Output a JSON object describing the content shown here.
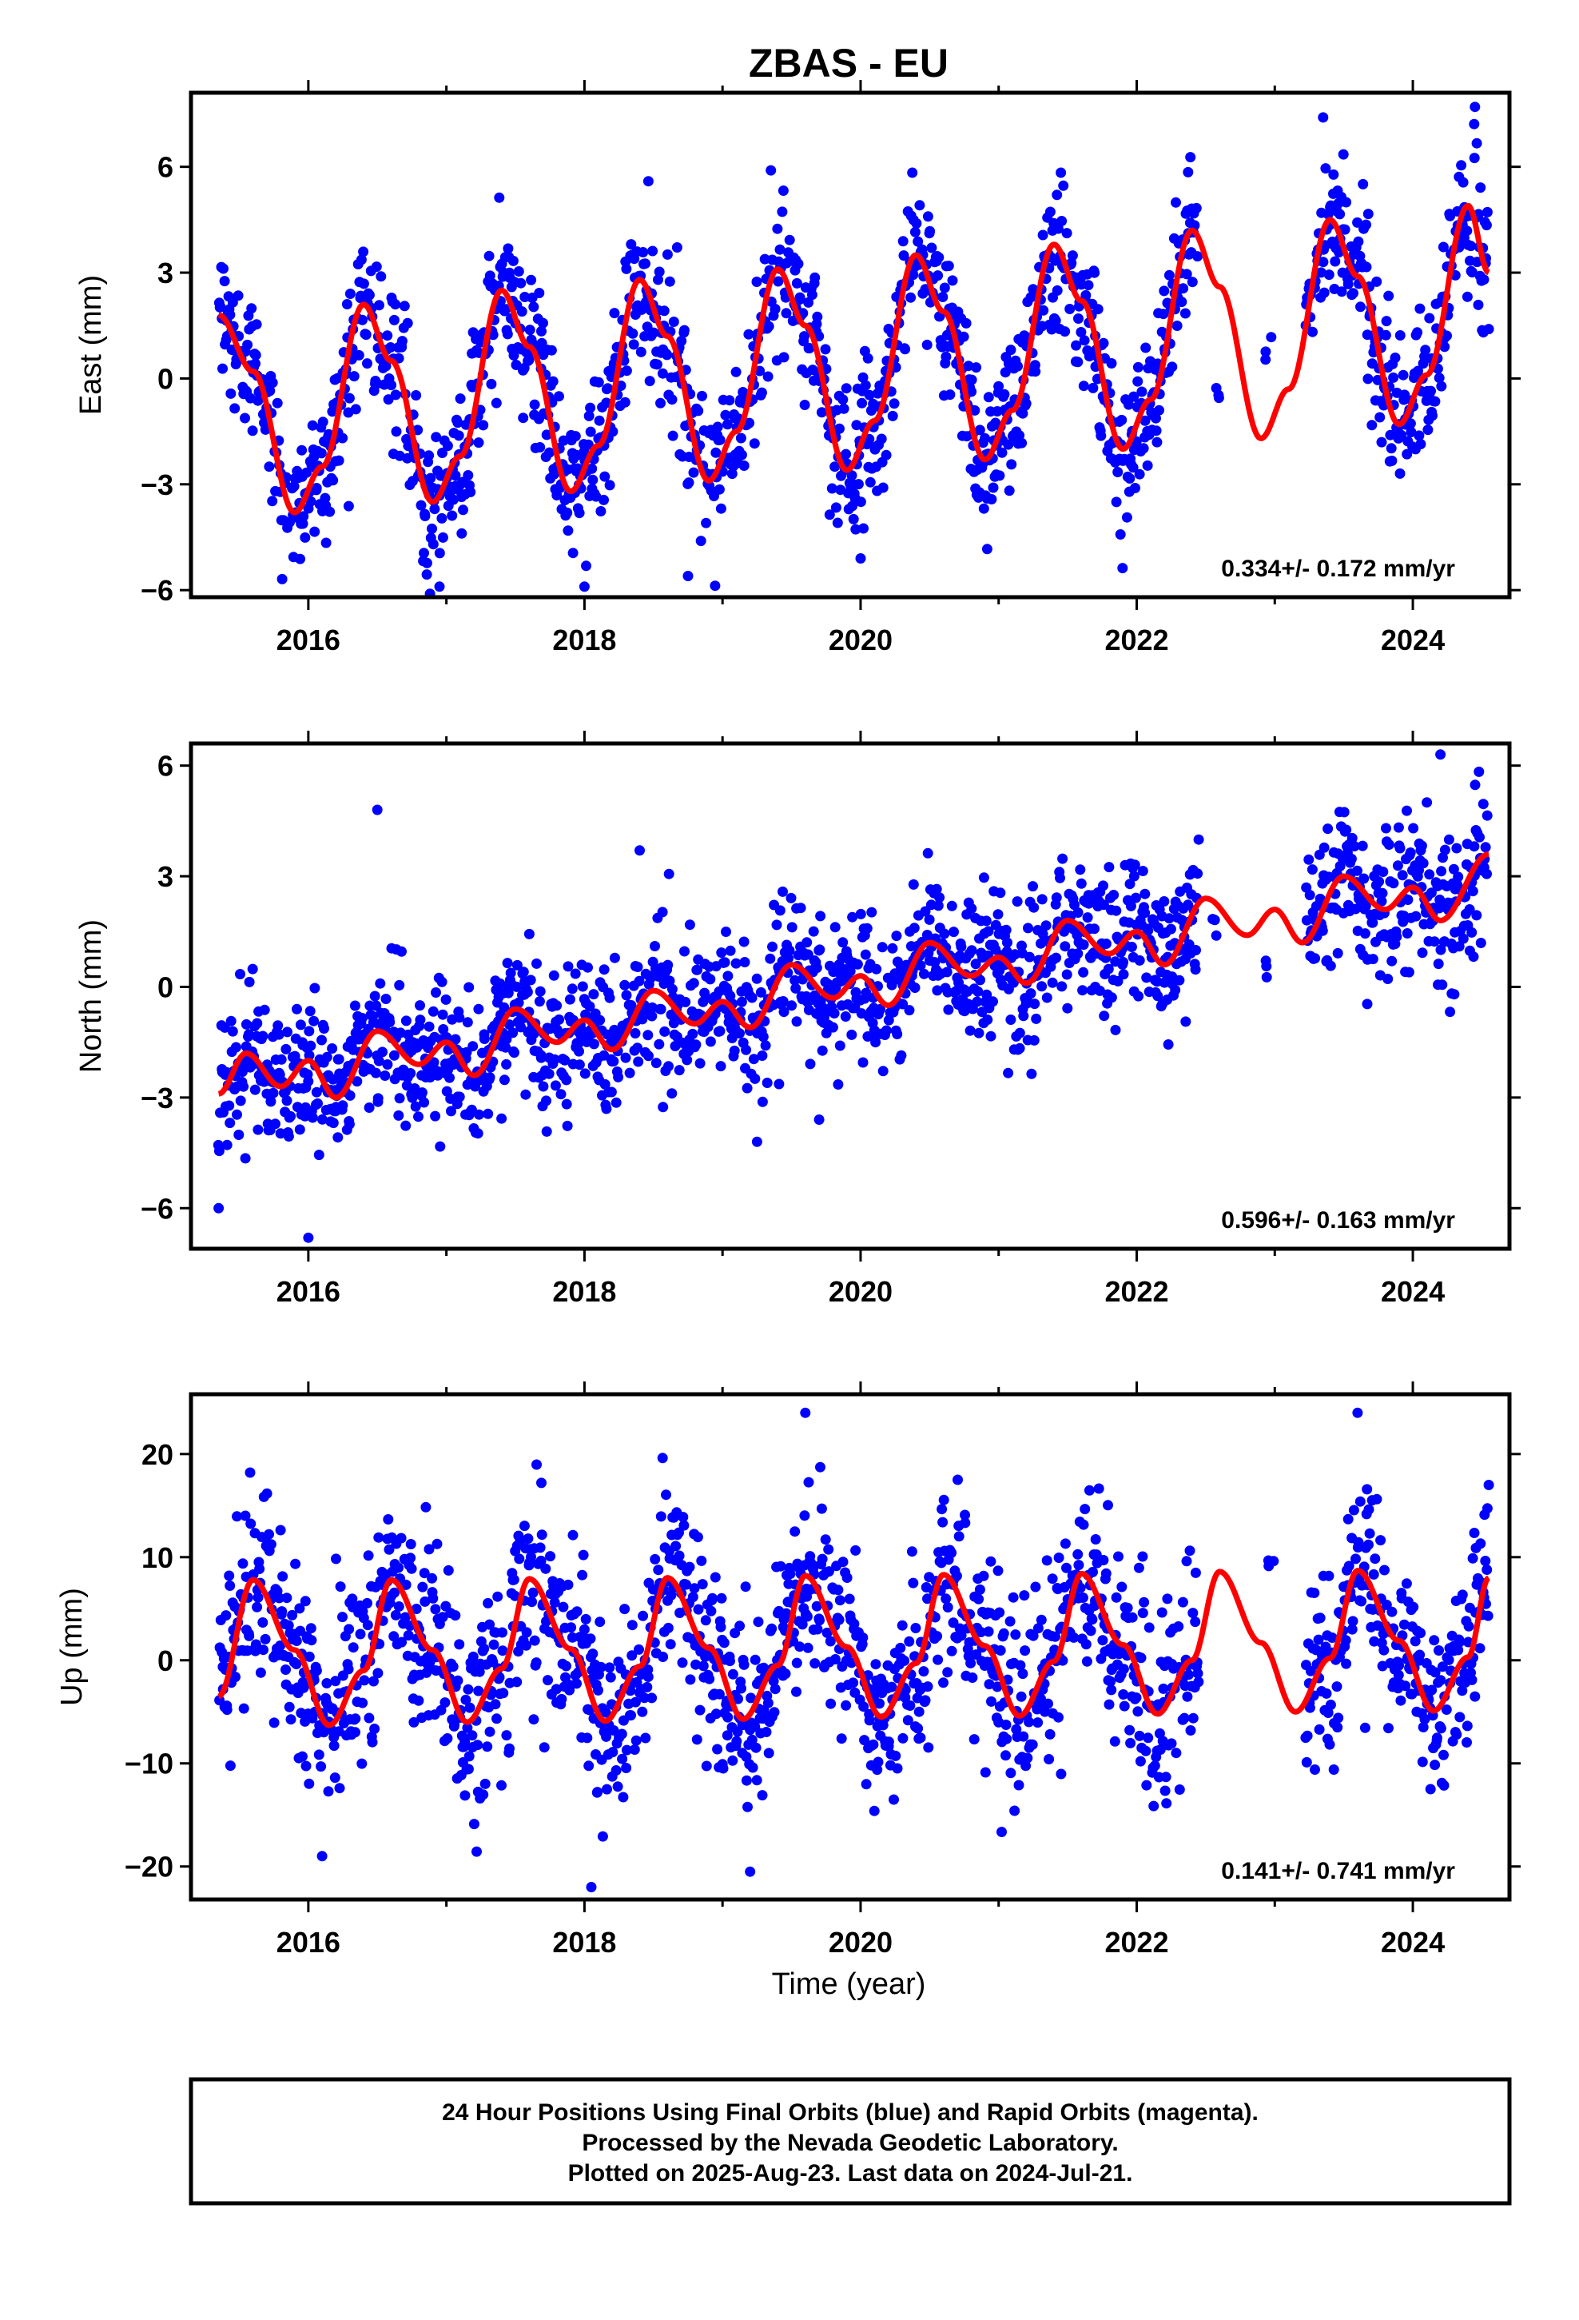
{
  "title": "ZBAS - EU",
  "xlabel": "Time (year)",
  "footer": {
    "lines": [
      "24 Hour Positions Using Final Orbits (blue) and Rapid Orbits (magenta).",
      "Processed by the Nevada Geodetic Laboratory.",
      "Plotted on 2025-Aug-23. Last data on 2024-Jul-21."
    ]
  },
  "colors": {
    "points": "#0000ff",
    "fit": "#ff0000",
    "frame": "#000000"
  },
  "chart_data": [
    {
      "type": "scatter",
      "name": "east",
      "ylabel": "East (mm)",
      "rate_text": "0.334+/- 0.172 mm/yr",
      "xlim": [
        2015.15,
        2024.7
      ],
      "ylim": [
        -6.2,
        8.1
      ],
      "xticks": [
        2016,
        2018,
        2020,
        2022,
        2024
      ],
      "yticks": [
        -6,
        -3,
        0,
        3,
        6
      ],
      "fit": {
        "annual_amp": 3.0,
        "annual_phase": 0.04,
        "semi_amp": 0.4,
        "semi_phase": 0.2,
        "trend": 0.334,
        "offset": -0.9
      },
      "fit_x": [
        2015.35,
        2015.6,
        2015.9,
        2016.1,
        2016.4,
        2016.6,
        2016.9,
        2017.1,
        2017.4,
        2017.6,
        2017.9,
        2018.1,
        2018.4,
        2018.6,
        2018.9,
        2019.1,
        2019.4,
        2019.6,
        2019.9,
        2020.1,
        2020.4,
        2020.6,
        2020.9,
        2021.1,
        2021.4,
        2021.6,
        2021.9,
        2022.1,
        2022.4,
        2022.6,
        2022.9,
        2023.1,
        2023.4,
        2023.6,
        2023.9,
        2024.1,
        2024.4,
        2024.55
      ],
      "fit_y": [
        1.8,
        0.2,
        -3.8,
        -2.5,
        2.1,
        0.5,
        -3.5,
        -2.2,
        2.5,
        0.9,
        -3.2,
        -1.9,
        2.8,
        1.2,
        -2.9,
        -1.5,
        3.1,
        1.5,
        -2.6,
        -1.2,
        3.5,
        1.9,
        -2.3,
        -0.9,
        3.8,
        2.2,
        -2.0,
        -0.6,
        4.2,
        2.6,
        -1.7,
        -0.3,
        4.5,
        2.9,
        -1.3,
        0.1,
        4.9,
        3.0
      ],
      "cloud": {
        "x_start": 2015.35,
        "x_end": 2024.55,
        "gaps": [
          [
            2022.45,
            2023.22
          ]
        ],
        "sparse": [
          [
            2022.55,
            2022.6,
            -0.2
          ],
          [
            2022.93,
            2022.98,
            0.8
          ]
        ],
        "noise": 1.05,
        "n": 1900
      },
      "outliers": [
        [
          2019.35,
          5.9
        ],
        [
          2018.75,
          -5.6
        ],
        [
          2018.0,
          -5.9
        ],
        [
          2016.95,
          -5.9
        ],
        [
          2020.0,
          -5.1
        ],
        [
          2024.45,
          7.7
        ],
        [
          2023.35,
          7.4
        ],
        [
          2024.55,
          1.4
        ]
      ]
    },
    {
      "type": "scatter",
      "name": "north",
      "ylabel": "North (mm)",
      "rate_text": "0.596+/- 0.163 mm/yr",
      "xlim": [
        2015.15,
        2024.7
      ],
      "ylim": [
        -7.1,
        6.6
      ],
      "xticks": [
        2016,
        2018,
        2020,
        2022,
        2024
      ],
      "yticks": [
        -6,
        -3,
        0,
        3,
        6
      ],
      "fit": {
        "annual_amp": 0.55,
        "annual_phase": 0.55,
        "semi_amp": 0.35,
        "semi_phase": 0.1,
        "trend": 0.596,
        "offset": -2.4
      },
      "fit_x": [
        2015.35,
        2015.55,
        2015.8,
        2016.0,
        2016.2,
        2016.5,
        2016.8,
        2017.0,
        2017.2,
        2017.5,
        2017.8,
        2018.0,
        2018.2,
        2018.5,
        2018.8,
        2019.0,
        2019.2,
        2019.5,
        2019.8,
        2020.0,
        2020.2,
        2020.5,
        2020.8,
        2021.0,
        2021.2,
        2021.5,
        2021.8,
        2022.0,
        2022.2,
        2022.5,
        2022.8,
        2023.0,
        2023.2,
        2023.5,
        2023.8,
        2024.0,
        2024.2,
        2024.55
      ],
      "fit_y": [
        -2.9,
        -1.8,
        -2.7,
        -2.0,
        -3.0,
        -1.2,
        -2.1,
        -1.5,
        -2.4,
        -0.6,
        -1.5,
        -0.9,
        -1.7,
        -0.1,
        -1.0,
        -0.4,
        -1.1,
        0.6,
        -0.3,
        0.3,
        -0.5,
        1.2,
        0.3,
        0.8,
        0.1,
        1.8,
        0.9,
        1.5,
        0.6,
        2.4,
        1.4,
        2.1,
        1.2,
        3.0,
        2.1,
        2.7,
        1.8,
        3.6
      ],
      "cloud": {
        "x_start": 2015.35,
        "x_end": 2024.55,
        "gaps": [
          [
            2022.45,
            2023.22
          ]
        ],
        "sparse": [
          [
            2022.55,
            2022.6,
            1.5
          ],
          [
            2022.9,
            2022.95,
            0.4
          ]
        ],
        "noise": 0.95,
        "n": 1900
      },
      "outliers": [
        [
          2016.5,
          4.8
        ],
        [
          2016.0,
          -6.8
        ],
        [
          2015.35,
          -6.0
        ],
        [
          2018.4,
          3.7
        ],
        [
          2019.7,
          -3.6
        ],
        [
          2024.2,
          6.3
        ],
        [
          2024.3,
          -0.2
        ],
        [
          2019.25,
          -4.2
        ]
      ]
    },
    {
      "type": "scatter",
      "name": "up",
      "ylabel": "Up (mm)",
      "rate_text": "0.141+/- 0.741 mm/yr",
      "xlim": [
        2015.15,
        2024.7
      ],
      "ylim": [
        -23.2,
        25.8
      ],
      "xticks": [
        2016,
        2018,
        2020,
        2022,
        2024
      ],
      "yticks": [
        -20,
        -10,
        0,
        10,
        20
      ],
      "fit": {
        "annual_amp": 7.0,
        "annual_phase": 0.34,
        "semi_amp": 1.0,
        "semi_phase": 0.0,
        "trend": 0.141,
        "offset": 1.0
      },
      "fit_x": [
        2015.35,
        2015.6,
        2015.9,
        2016.15,
        2016.4,
        2016.6,
        2016.9,
        2017.15,
        2017.4,
        2017.6,
        2017.9,
        2018.15,
        2018.4,
        2018.6,
        2018.9,
        2019.15,
        2019.4,
        2019.6,
        2019.9,
        2020.15,
        2020.4,
        2020.6,
        2020.9,
        2021.15,
        2021.4,
        2021.6,
        2021.9,
        2022.15,
        2022.4,
        2022.6,
        2022.9,
        2023.15,
        2023.4,
        2023.6,
        2023.9,
        2024.15,
        2024.4,
        2024.55
      ],
      "fit_y": [
        -3.5,
        7.8,
        1.0,
        -6.3,
        -1.0,
        7.8,
        1.0,
        -6.0,
        -0.8,
        7.9,
        1.1,
        -5.9,
        -0.6,
        8.0,
        1.2,
        -5.7,
        -0.5,
        8.2,
        1.3,
        -5.5,
        -0.3,
        8.3,
        1.4,
        -5.4,
        -0.1,
        8.4,
        1.5,
        -5.2,
        0.0,
        8.6,
        1.7,
        -5.0,
        0.2,
        8.7,
        1.9,
        -4.9,
        0.3,
        8.0
      ],
      "cloud": {
        "x_start": 2015.35,
        "x_end": 2024.55,
        "gaps": [
          [
            2022.45,
            2023.22
          ]
        ],
        "sparse": [
          [
            2022.95,
            2023.0,
            9.5
          ]
        ],
        "noise": 4.6,
        "n": 1900
      },
      "outliers": [
        [
          2019.6,
          24.0
        ],
        [
          2023.6,
          24.0
        ],
        [
          2018.05,
          -22.0
        ],
        [
          2019.2,
          -20.5
        ],
        [
          2022.25,
          -21.0
        ],
        [
          2016.1,
          -19.0
        ],
        [
          2024.55,
          17.0
        ]
      ]
    }
  ],
  "ticks_text": {
    "x": [
      "2016",
      "2018",
      "2020",
      "2022",
      "2024"
    ],
    "east_y": [
      "−6",
      "−3",
      "0",
      "3",
      "6"
    ],
    "north_y": [
      "−6",
      "−3",
      "0",
      "3",
      "6"
    ],
    "up_y": [
      "−20",
      "−10",
      "0",
      "10",
      "20"
    ]
  }
}
